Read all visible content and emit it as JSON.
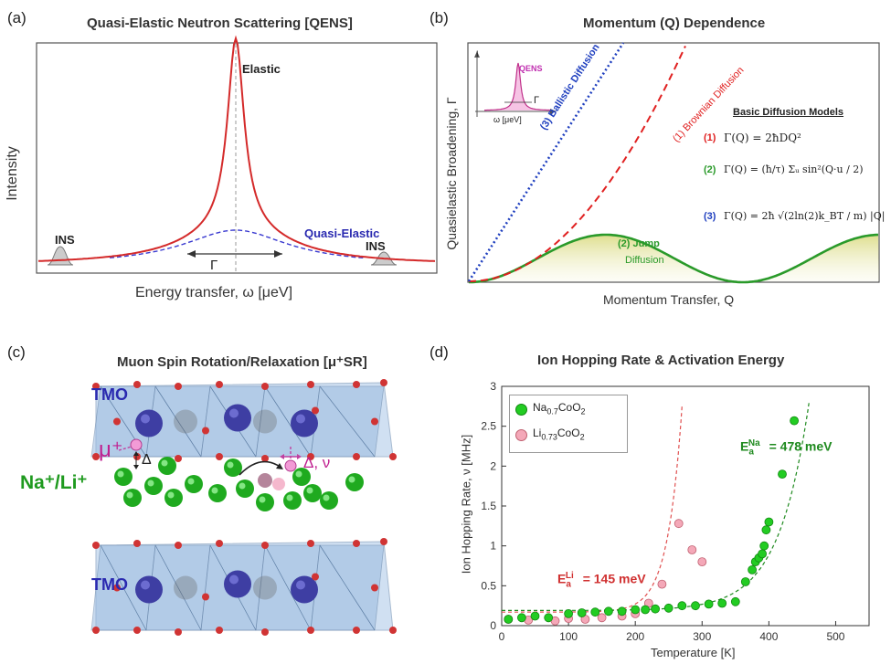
{
  "panel_a": {
    "label": "(a)",
    "title": "Quasi-Elastic Neutron Scattering [QENS]",
    "ylabel": "Intensity",
    "xlabel": "Energy transfer, ω [μeV]",
    "elastic": "Elastic",
    "quasi_elastic": "Quasi-Elastic",
    "ins_left": "INS",
    "ins_right": "INS",
    "gamma": "Γ"
  },
  "panel_b": {
    "label": "(b)",
    "title": "Momentum (Q) Dependence",
    "ylabel": "Quasielastic Broadening, Γ",
    "xlabel": "Momentum Transfer, Q",
    "inset_label": "QENS",
    "inset_axis_I": "I",
    "inset_axis_omega": "ω [μeV]",
    "inset_gamma": "Γ",
    "curve_ballistic": "(3) Ballistic Diffusion",
    "curve_brownian": "(1) Brownian Diffusion",
    "jump_num": "(2) Jump",
    "jump_word": "Diffusion",
    "models_title": "Basic Diffusion Models",
    "model1_num": "(1)",
    "model2_num": "(2)",
    "model3_num": "(3)",
    "model1_eq": "Γ(Q) = 2ħDQ²",
    "model2_eq": "Γ(Q) = (ħ/τ) Σᵤ sin²(Q·u / 2)",
    "model3_eq": "Γ(Q) = 2ħ √(2ln(2)k_BT / m) |Q|",
    "colors": {
      "brownian": "#e02020",
      "jump": "#2a9a2a",
      "ballistic": "#1f3fbf"
    }
  },
  "panel_c": {
    "label": "(c)",
    "title": "Muon Spin Rotation/Relaxation [μ⁺SR]",
    "tmo_top": "TMO",
    "tmo_bottom": "TMO",
    "ions": "Na⁺/Li⁺",
    "muon": "μ⁺",
    "delta": "Δ",
    "delta_nu": "Δ, ν"
  },
  "panel_d": {
    "label": "(d)",
    "title": "Ion Hopping Rate & Activation Energy",
    "ea_li": "E",
    "ea_li_sub": "a",
    "ea_li_sup": "Li",
    "ea_li_value": "= 145 meV",
    "ea_na": "E",
    "ea_na_sub": "a",
    "ea_na_sup": "Na",
    "ea_na_value": "= 478 meV"
  },
  "chart_data": {
    "type": "scatter",
    "xlabel": "Temperature [K]",
    "ylabel": "Ion Hopping Rate, ν [MHz]",
    "xlim": [
      0,
      550
    ],
    "ylim": [
      0,
      3
    ],
    "xticks": [
      "0",
      "100",
      "200",
      "300",
      "400",
      "500"
    ],
    "yticks": [
      "0",
      "0.5",
      "1",
      "1.5",
      "2",
      "2.5",
      "3"
    ],
    "legend_position": "top-left",
    "series": [
      {
        "name": "Na0.7CoO2",
        "color": "#22cc22",
        "x": [
          10,
          30,
          50,
          70,
          100,
          120,
          140,
          160,
          180,
          200,
          215,
          230,
          250,
          270,
          290,
          310,
          330,
          350,
          365,
          375,
          380,
          385,
          390,
          393,
          396,
          400,
          420,
          438
        ],
        "y": [
          0.08,
          0.1,
          0.12,
          0.1,
          0.15,
          0.16,
          0.17,
          0.18,
          0.18,
          0.2,
          0.2,
          0.21,
          0.22,
          0.25,
          0.25,
          0.27,
          0.28,
          0.3,
          0.55,
          0.7,
          0.8,
          0.85,
          0.9,
          1.0,
          1.2,
          1.3,
          1.9,
          2.57
        ]
      },
      {
        "name": "Li0.73CoO2",
        "color": "#f4a8b8",
        "x": [
          10,
          40,
          80,
          100,
          125,
          150,
          180,
          200,
          220,
          240,
          265,
          285,
          300
        ],
        "y": [
          0.08,
          0.07,
          0.06,
          0.09,
          0.08,
          0.1,
          0.12,
          0.15,
          0.28,
          0.52,
          1.28,
          0.95,
          0.8
        ]
      }
    ]
  }
}
